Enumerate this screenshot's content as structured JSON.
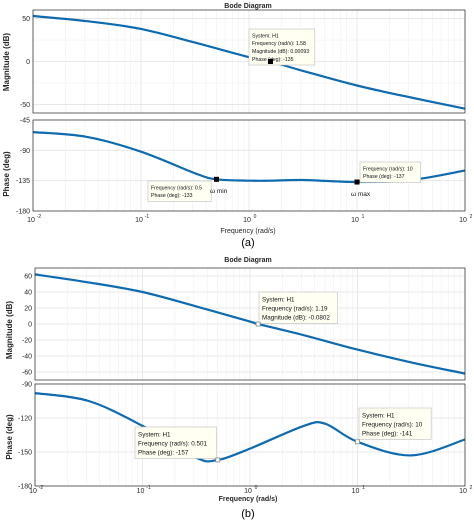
{
  "figure_a": {
    "title": "Bode Diagram",
    "caption": "(a)",
    "xlabel": "Frequency (rad/s)",
    "mag_ylabel": "Magnitude (dB)",
    "phase_ylabel": "Phase (deg)",
    "mag_ticks": [
      "50",
      "0",
      "-50"
    ],
    "phase_ticks": [
      "-45",
      "-90",
      "-135",
      "-180"
    ],
    "x_ticks": [
      "10",
      "10",
      "10",
      "10",
      "10"
    ],
    "x_exps": [
      "-2",
      "-1",
      "0",
      "1",
      "2"
    ],
    "tip_mag": [
      "System: H1",
      "Frequency (rad/s): 1.58",
      "Magnitude (dB): 0.00093",
      "Phase (deg): -135"
    ],
    "tip_p1": [
      "Frequency (rad/s): 0.5",
      "Phase (deg): -133"
    ],
    "tip_p2": [
      "Frequency (rad/s): 10",
      "Phase (deg): -137"
    ],
    "label_min": "ω min",
    "label_max": "ω max"
  },
  "figure_b": {
    "title": "Bode Diagram",
    "caption": "(b)",
    "xlabel": "Frequency (rad/s)",
    "mag_ylabel": "Magnitude (dB)",
    "phase_ylabel": "Phase (deg)",
    "mag_ticks": [
      "60",
      "40",
      "20",
      "0",
      "-20",
      "-40",
      "-60"
    ],
    "phase_ticks": [
      "-90",
      "-120",
      "-150",
      "-180"
    ],
    "x_ticks": [
      "10",
      "10",
      "10",
      "10",
      "10"
    ],
    "x_exps": [
      "-2",
      "-1",
      "0",
      "1",
      "2"
    ],
    "tip_mag": [
      "System: H1",
      "Frequency (rad/s): 1.19",
      "Magnitude (dB): -0.0802"
    ],
    "tip_p1": [
      "System: H1",
      "Frequency (rad/s): 0.501",
      "Phase (deg): -157"
    ],
    "tip_p2": [
      "System: H1",
      "Frequency (rad/s): 10",
      "Phase (deg): -141"
    ]
  },
  "colors": {
    "curve": "#0e6bb0",
    "grid": "#e3e3e3",
    "axis": "#262626",
    "tip_bg": "#fffff2"
  },
  "chart_data": [
    {
      "type": "line",
      "title": "Bode Diagram",
      "xlabel": "Frequency (rad/s)",
      "ylabel": "Magnitude (dB)",
      "x_scale": "log",
      "xlim": [
        0.01,
        100
      ],
      "ylim": [
        -60,
        60
      ],
      "series": [
        {
          "x": [
            0.01,
            0.0316,
            0.1,
            0.316,
            1,
            1.58,
            3.16,
            10,
            31.6,
            100
          ],
          "values": [
            53,
            47,
            38,
            22,
            5,
            0.00093,
            -11,
            -28,
            -42,
            -55
          ]
        }
      ]
    },
    {
      "type": "line",
      "xlabel": "Frequency (rad/s)",
      "ylabel": "Phase (deg)",
      "x_scale": "log",
      "xlim": [
        0.01,
        100
      ],
      "ylim": [
        -180,
        -45
      ],
      "series": [
        {
          "x": [
            0.01,
            0.0316,
            0.1,
            0.316,
            0.5,
            1,
            1.58,
            3.16,
            10,
            31.6,
            100
          ],
          "values": [
            -63,
            -70,
            -92,
            -124,
            -133,
            -135,
            -135,
            -134,
            -137,
            -134,
            -120
          ]
        }
      ]
    },
    {
      "type": "line",
      "title": "Bode Diagram",
      "xlabel": "Frequency (rad/s)",
      "ylabel": "Magnitude (dB)",
      "x_scale": "log",
      "xlim": [
        0.01,
        100
      ],
      "ylim": [
        -70,
        70
      ],
      "series": [
        {
          "x": [
            0.01,
            0.0316,
            0.1,
            0.316,
            1,
            1.19,
            3.16,
            10,
            31.6,
            100
          ],
          "values": [
            62,
            52,
            40,
            22,
            3,
            -0.0802,
            -14,
            -32,
            -48,
            -62
          ]
        }
      ]
    },
    {
      "type": "line",
      "xlabel": "Frequency (rad/s)",
      "ylabel": "Phase (deg)",
      "x_scale": "log",
      "xlim": [
        0.01,
        100
      ],
      "ylim": [
        -180,
        -90
      ],
      "series": [
        {
          "x": [
            0.01,
            0.0316,
            0.1,
            0.316,
            0.501,
            1,
            3.16,
            5,
            10,
            31.6,
            100
          ],
          "values": [
            -98,
            -105,
            -127,
            -155,
            -157,
            -147,
            -127,
            -125,
            -141,
            -153,
            -139
          ]
        }
      ]
    }
  ]
}
